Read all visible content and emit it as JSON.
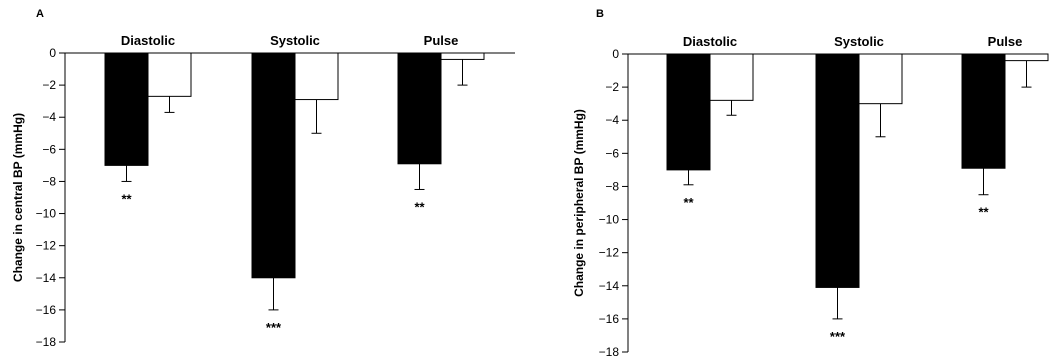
{
  "chart_data": [
    {
      "type": "bar",
      "panel_label": "A",
      "ylabel": "Change in central BP (mmHg)",
      "ylim": [
        -18,
        0
      ],
      "yticks": [
        0,
        -2,
        -4,
        -6,
        -8,
        -10,
        -12,
        -14,
        -16,
        -18
      ],
      "categories": [
        "Diastolic",
        "Systolic",
        "Pulse"
      ],
      "series": [
        {
          "values": [
            -7.0,
            -14.0,
            -6.9
          ],
          "errors": [
            1.0,
            2.0,
            1.6
          ],
          "color": "#000000"
        },
        {
          "values": [
            -2.7,
            -2.9,
            -0.4
          ],
          "errors": [
            1.0,
            2.1,
            1.6
          ],
          "color": "#ffffff"
        }
      ],
      "significance": [
        "**",
        "***",
        "**"
      ]
    },
    {
      "type": "bar",
      "panel_label": "B",
      "ylabel": "Change in peripheral BP (mmHg)",
      "ylim": [
        -18,
        0
      ],
      "yticks": [
        0,
        -2,
        -4,
        -6,
        -8,
        -10,
        -12,
        -14,
        -16,
        -18
      ],
      "categories": [
        "Diastolic",
        "Systolic",
        "Pulse"
      ],
      "series": [
        {
          "values": [
            -7.0,
            -14.1,
            -6.9
          ],
          "errors": [
            0.9,
            1.9,
            1.6
          ],
          "color": "#000000"
        },
        {
          "values": [
            -2.8,
            -3.0,
            -0.4
          ],
          "errors": [
            0.9,
            2.0,
            1.6
          ],
          "color": "#ffffff"
        }
      ],
      "significance": [
        "**",
        "***",
        "**"
      ]
    }
  ]
}
